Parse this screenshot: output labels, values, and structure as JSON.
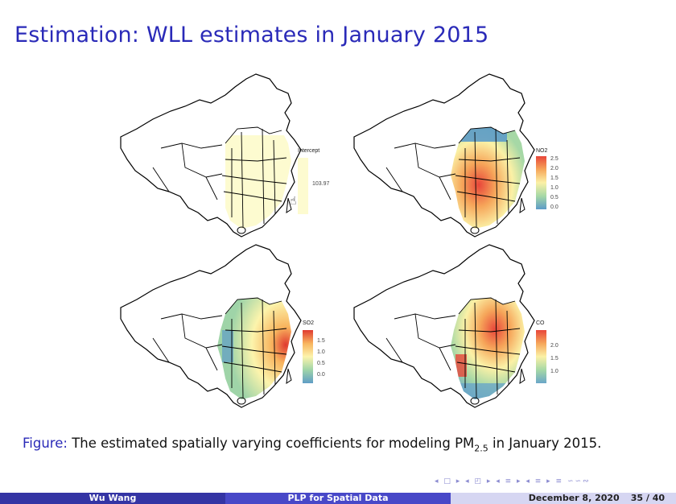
{
  "slide": {
    "title": "Estimation: WLL estimates in January 2015"
  },
  "panels": [
    {
      "legend_title": "Intercept",
      "legend_ticks": [
        "103.97"
      ],
      "colors": [
        "#fdfbd0",
        "#fdfbd0"
      ]
    },
    {
      "legend_title": "NO2",
      "legend_ticks": [
        "2.5",
        "2.0",
        "1.5",
        "1.0",
        "0.5",
        "0.0"
      ],
      "colors": [
        "#e8463a",
        "#f6a65a",
        "#fbf1a6",
        "#a6d8a6",
        "#5c9bc8"
      ]
    },
    {
      "legend_title": "SO2",
      "legend_ticks": [
        "1.5",
        "1.0",
        "0.5",
        "0.0"
      ],
      "colors": [
        "#e03a30",
        "#f8b45e",
        "#fcf4ac",
        "#9fd4a8",
        "#5f9dc6"
      ]
    },
    {
      "legend_title": "CO",
      "legend_ticks": [
        "2.0",
        "1.5",
        "1.0"
      ],
      "colors": [
        "#e8463a",
        "#f6a65a",
        "#fbf1a6",
        "#a6d8a6",
        "#6aa6c8"
      ]
    }
  ],
  "caption": {
    "label": "Figure:",
    "text_before": "The estimated spatially varying coefficients for modeling PM",
    "subscript": "2.5",
    "text_after": " in January 2015."
  },
  "nav": {
    "icons": "◂ □ ▸ ◂ ◰ ▸ ◂ ≡ ▸ ◂ ≡ ▸ ≡ ∽∽∾"
  },
  "footer": {
    "author": "Wu Wang",
    "short_title": "PLP for Spatial Data",
    "date": "December 8, 2020",
    "page": "35 / 40"
  }
}
